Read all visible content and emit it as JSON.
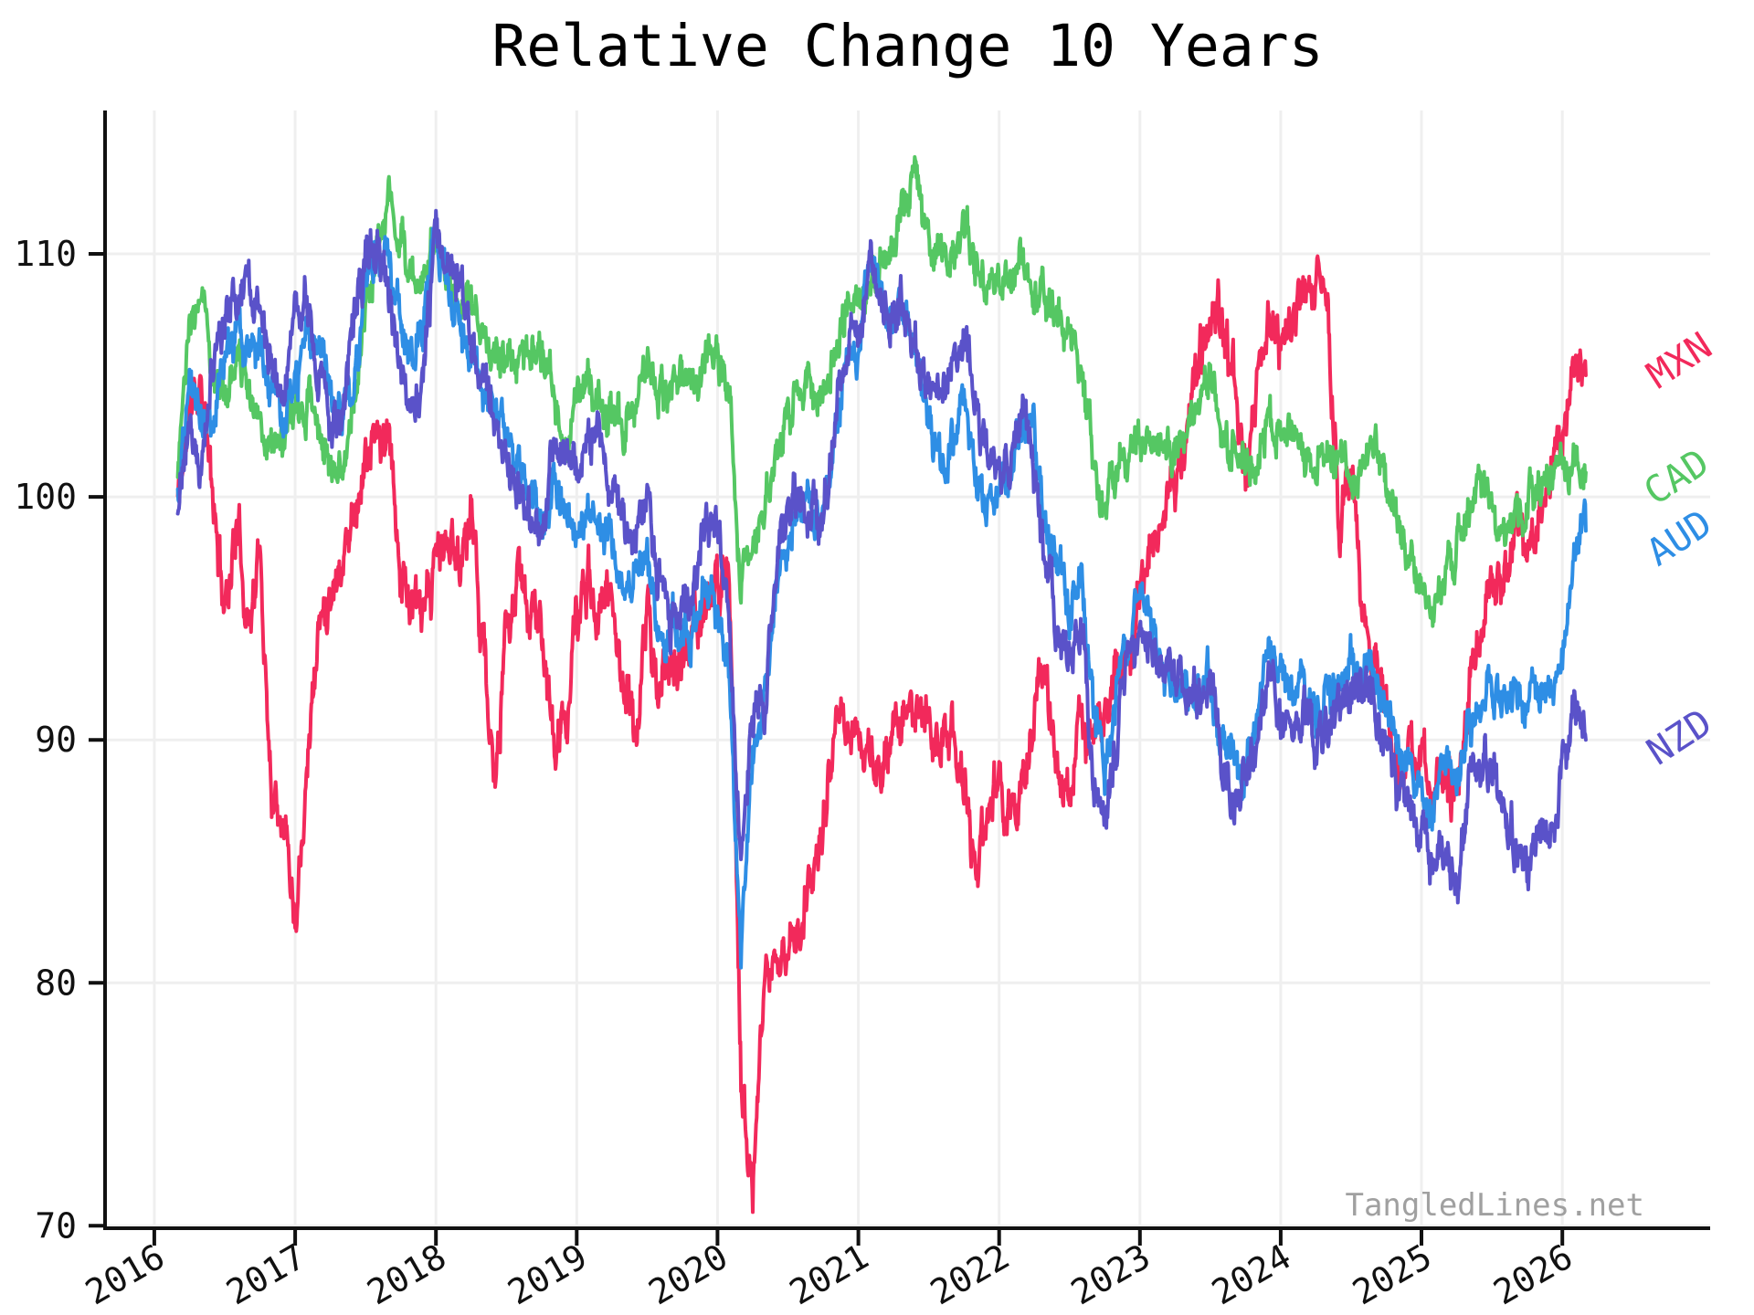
{
  "title": "Relative Change 10 Years",
  "watermark": "TangledLines.net",
  "chart_data": {
    "type": "line",
    "title": "Relative Change 10 Years",
    "xlabel": "",
    "ylabel": "",
    "xlim": [
      2015.65,
      2027.05
    ],
    "ylim": [
      69.9,
      115.9
    ],
    "x_ticks": [
      2016,
      2017,
      2018,
      2019,
      2020,
      2021,
      2022,
      2023,
      2024,
      2025,
      2026
    ],
    "x_tick_labels": [
      "2016",
      "2017",
      "2018",
      "2019",
      "2020",
      "2021",
      "2022",
      "2023",
      "2024",
      "2025",
      "2026"
    ],
    "y_ticks": [
      70,
      80,
      90,
      100,
      110
    ],
    "y_tick_labels": [
      "70",
      "80",
      "90",
      "100",
      "110"
    ],
    "grid": true,
    "grid_color": "#efefef",
    "axis_color": "#111111",
    "tick_label_color": "#111111",
    "tick_label_size": 38,
    "x_tick_rotation": -30,
    "watermark_color": "#a0a0a0",
    "legend_position": "right-annotations",
    "x_start": 2016.1667,
    "x_step": 0.0833333,
    "line_width": 4,
    "noise_substeps": 21,
    "noise_persistence": 0.78,
    "series": [
      {
        "name": "MXN",
        "color": "#f2295b",
        "label": {
          "text": "MXN",
          "x": 2026.88,
          "y": 105.7,
          "rotation": -33,
          "size": 41
        },
        "noise": {
          "seed": 11,
          "amplitude": 1.15
        },
        "values": [
          100,
          103.5,
          105.2,
          99.5,
          95.5,
          99,
          95,
          97.5,
          88,
          87.5,
          83,
          89.5,
          94.5,
          96.5,
          97.5,
          99.5,
          101.5,
          102.5,
          102,
          97,
          95.5,
          94.5,
          97.5,
          98,
          97.5,
          99.5,
          94.5,
          87.5,
          94,
          96.5,
          95.5,
          94.5,
          89.5,
          90.5,
          95,
          96.5,
          95.5,
          96,
          92.5,
          90,
          95.5,
          91.5,
          93.5,
          93,
          94.5,
          95,
          96.5,
          97.5,
          76,
          71.5,
          79,
          81.5,
          81,
          82.5,
          84.5,
          86.5,
          89.5,
          91,
          90,
          89.5,
          88,
          90.5,
          91,
          91,
          90.5,
          90,
          90.5,
          88.5,
          84.5,
          87,
          88.5,
          87,
          87.5,
          91,
          92,
          88.5,
          88,
          90.5,
          90,
          91.5,
          93.5,
          93,
          96,
          98.5,
          98.5,
          101,
          102.5,
          106,
          107.5,
          106.5,
          104.5,
          100.5,
          104.5,
          107,
          106.5,
          106.5,
          108.5,
          110,
          108.5,
          98.5,
          101,
          94.5,
          93,
          91.5,
          89,
          89.5,
          88.5,
          88,
          88.5,
          87,
          92,
          95.5,
          97,
          95.5,
          98.5,
          98,
          99.5,
          100.3,
          102.5,
          105.3,
          105
        ]
      },
      {
        "name": "CAD",
        "color": "#55c763",
        "label": {
          "text": "CAD",
          "x": 2026.86,
          "y": 100.9,
          "rotation": -33,
          "size": 41
        },
        "noise": {
          "seed": 23,
          "amplitude": 0.85
        },
        "values": [
          101.5,
          106.5,
          108.5,
          105.5,
          104,
          105.5,
          104.5,
          103.5,
          102,
          102.5,
          103,
          104,
          103,
          101.5,
          101,
          104,
          108,
          109.5,
          113,
          110,
          108.5,
          109.5,
          111,
          109,
          107,
          108.5,
          107,
          105.5,
          105.5,
          106,
          106.5,
          106,
          104.5,
          102.5,
          104,
          104.5,
          103.5,
          103.5,
          103,
          104.5,
          105.5,
          104.5,
          104.5,
          105,
          104.5,
          106,
          106,
          104.5,
          96.5,
          98,
          99.5,
          102,
          103,
          104.5,
          104.5,
          104.5,
          106,
          107.5,
          108,
          108.5,
          110,
          110.5,
          112.5,
          113.3,
          110.5,
          109.5,
          109.5,
          111,
          110,
          108.5,
          109,
          108.5,
          109.5,
          109,
          108,
          107.5,
          107,
          105,
          101.5,
          99,
          101.5,
          101.5,
          102.5,
          102,
          101.5,
          102,
          102.5,
          104,
          104.5,
          102.5,
          102,
          101,
          101.5,
          103,
          102.5,
          102,
          102,
          101,
          101.5,
          101,
          100.5,
          101,
          102.5,
          100.5,
          99,
          97.5,
          96.3,
          95.4,
          96.5,
          98,
          99.5,
          100.2,
          99.4,
          98.7,
          99.2,
          99.8,
          100.2,
          100.8,
          100.9,
          101.5,
          101
        ]
      },
      {
        "name": "AUD",
        "color": "#2e8ee5",
        "label": {
          "text": "AUD",
          "x": 2026.88,
          "y": 98.4,
          "rotation": -33,
          "size": 41
        },
        "noise": {
          "seed": 37,
          "amplitude": 0.9
        },
        "values": [
          100,
          105,
          103.5,
          104,
          105.5,
          106.5,
          106.5,
          106.5,
          104,
          102.5,
          104.5,
          106.5,
          106,
          104.5,
          103,
          105,
          109,
          110,
          110.5,
          107,
          105.5,
          107.5,
          111.5,
          108.5,
          107,
          105.5,
          104.5,
          103,
          103,
          101.5,
          100,
          99,
          100.5,
          99.5,
          98.5,
          99,
          98.5,
          98.5,
          97,
          97,
          97.5,
          94.5,
          94.5,
          95,
          95,
          96.5,
          95,
          92.5,
          81.5,
          89,
          91.5,
          96.5,
          98.5,
          100.5,
          100,
          99,
          102,
          106,
          106,
          109.5,
          107.5,
          107.5,
          107.5,
          105.5,
          103.5,
          101.5,
          102,
          104,
          101,
          100,
          100,
          100.5,
          103,
          102.5,
          98.5,
          97.5,
          95.5,
          96.5,
          91.5,
          88.5,
          92,
          94,
          96,
          94,
          92.5,
          92.5,
          91.5,
          92.5,
          93,
          89.5,
          89.5,
          88.5,
          90.5,
          94,
          93,
          91.5,
          92,
          91.5,
          92,
          92.5,
          93.5,
          92,
          93,
          91,
          89.5,
          89,
          88,
          87,
          89,
          88,
          90.5,
          91,
          92,
          91.5,
          92,
          91.5,
          91.5,
          92,
          93.5,
          98.3,
          98.6
        ]
      },
      {
        "name": "NZD",
        "color": "#5a52c9",
        "label": {
          "text": "NZD",
          "x": 2026.88,
          "y": 90.2,
          "rotation": -33,
          "size": 41
        },
        "noise": {
          "seed": 51,
          "amplitude": 1.0
        },
        "values": [
          100,
          103,
          101.5,
          105.5,
          107,
          108.5,
          109.5,
          108,
          105.5,
          104,
          107.5,
          108,
          105.5,
          103.5,
          103,
          107.5,
          110.5,
          110,
          108.5,
          104.5,
          103.5,
          105.5,
          111,
          109.5,
          108.5,
          106.5,
          104.5,
          103.5,
          102,
          100,
          99,
          98,
          102,
          101.5,
          101.5,
          102.5,
          102.5,
          100,
          98.5,
          99,
          100,
          96.5,
          94.5,
          95.5,
          96.5,
          99,
          98.5,
          95,
          84,
          91,
          92,
          97,
          99,
          99.5,
          99.5,
          99.5,
          103.5,
          106.5,
          106.5,
          110,
          107,
          107.5,
          108,
          105.5,
          104.5,
          104,
          105.5,
          106,
          103.5,
          101.5,
          101,
          101.5,
          103.5,
          101,
          97,
          94.5,
          93.5,
          94.5,
          89.5,
          86.5,
          90.5,
          93.5,
          94.5,
          93,
          92.5,
          92,
          92.5,
          91.5,
          92.5,
          89,
          87.5,
          88.5,
          90,
          93,
          91,
          89.5,
          91,
          90,
          90.5,
          91,
          91.5,
          92,
          91.5,
          89.5,
          88,
          87,
          86.5,
          85,
          86,
          83.5,
          88,
          89,
          88.5,
          87,
          85.5,
          85,
          86,
          87,
          88,
          91.5,
          90
        ]
      }
    ]
  }
}
